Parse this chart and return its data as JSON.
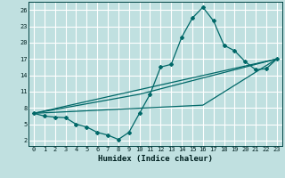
{
  "xlabel": "Humidex (Indice chaleur)",
  "bg_color": "#c0e0e0",
  "grid_color": "#ffffff",
  "line_color": "#006868",
  "xlim": [
    -0.5,
    23.5
  ],
  "ylim": [
    1,
    27.5
  ],
  "xticks": [
    0,
    1,
    2,
    3,
    4,
    5,
    6,
    7,
    8,
    9,
    10,
    11,
    12,
    13,
    14,
    15,
    16,
    17,
    18,
    19,
    20,
    21,
    22,
    23
  ],
  "yticks": [
    2,
    5,
    8,
    11,
    14,
    17,
    20,
    23,
    26
  ],
  "curve_main": {
    "x": [
      0,
      1,
      2,
      3,
      4,
      5,
      6,
      7,
      8,
      9,
      10,
      11,
      12,
      13,
      14,
      15,
      16,
      17,
      18,
      19,
      20,
      21,
      22,
      23
    ],
    "y": [
      7.0,
      6.5,
      6.3,
      6.2,
      5.0,
      4.5,
      3.5,
      3.0,
      2.2,
      3.5,
      7.0,
      10.5,
      15.5,
      16.0,
      21.0,
      24.5,
      26.5,
      24.0,
      19.5,
      18.5,
      16.5,
      15.0,
      15.2,
      17.0
    ]
  },
  "line1": {
    "x": [
      0,
      23
    ],
    "y": [
      7.0,
      17.0
    ]
  },
  "line2": {
    "x": [
      0,
      10,
      23
    ],
    "y": [
      7.0,
      10.5,
      17.0
    ]
  },
  "line3": {
    "x": [
      0,
      16,
      23
    ],
    "y": [
      7.0,
      8.5,
      17.0
    ]
  }
}
